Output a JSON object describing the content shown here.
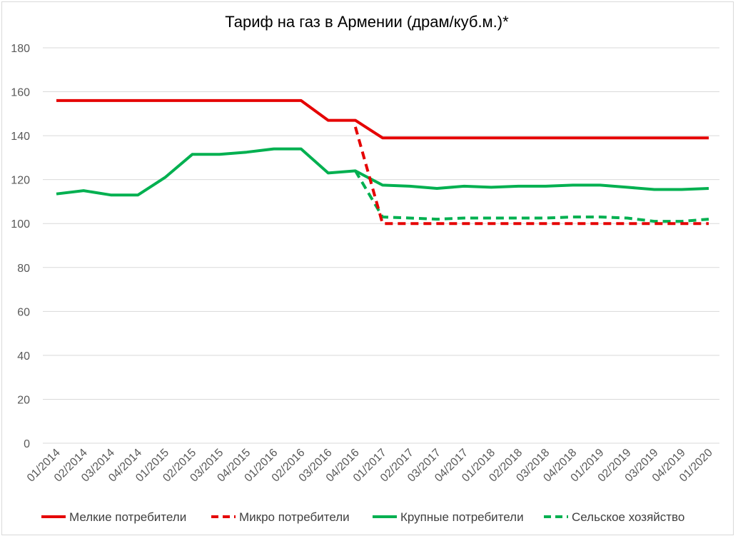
{
  "chart_data": {
    "type": "line",
    "title": "Тариф на газ в Армении (драм/куб.м.)*",
    "xlabel": "",
    "ylabel": "",
    "ylim": [
      0,
      180
    ],
    "yticks": [
      0,
      20,
      40,
      60,
      80,
      100,
      120,
      140,
      160,
      180
    ],
    "grid": true,
    "legend_position": "bottom",
    "categories": [
      "01/2014",
      "02/2014",
      "03/2014",
      "04/2014",
      "01/2015",
      "02/2015",
      "03/2015",
      "04/2015",
      "01/2016",
      "02/2016",
      "03/2016",
      "04/2016",
      "01/2017",
      "02/2017",
      "03/2017",
      "04/2017",
      "01/2018",
      "02/2018",
      "03/2018",
      "04/2018",
      "01/2019",
      "02/2019",
      "03/2019",
      "04/2019",
      "01/2020"
    ],
    "series": [
      {
        "name": "Мелкие потребители",
        "color": "#e50000",
        "dashed": false,
        "values": [
          156,
          156,
          156,
          156,
          156,
          156,
          156,
          156,
          156,
          156,
          147,
          147,
          139,
          139,
          139,
          139,
          139,
          139,
          139,
          139,
          139,
          139,
          139,
          139,
          139
        ]
      },
      {
        "name": "Микро потребители",
        "color": "#e50000",
        "dashed": true,
        "values": [
          null,
          null,
          null,
          null,
          null,
          null,
          null,
          null,
          null,
          null,
          null,
          144,
          100,
          100,
          100,
          100,
          100,
          100,
          100,
          100,
          100,
          100,
          100,
          100,
          100
        ]
      },
      {
        "name": "Крупные потребители",
        "color": "#00b050",
        "dashed": false,
        "values": [
          113.5,
          115,
          113,
          113,
          121,
          131.5,
          131.5,
          132.5,
          134,
          134,
          123,
          124,
          117.5,
          117,
          116,
          117,
          116.5,
          117,
          117,
          117.5,
          117.5,
          116.5,
          115.5,
          115.5,
          116
        ]
      },
      {
        "name": "Сельское хозяйство",
        "color": "#00b050",
        "dashed": true,
        "values": [
          null,
          null,
          null,
          null,
          null,
          null,
          null,
          null,
          null,
          null,
          null,
          124,
          103,
          102.5,
          102,
          102.5,
          102.5,
          102.5,
          102.5,
          103,
          103,
          102.5,
          101,
          101,
          102
        ]
      }
    ]
  }
}
